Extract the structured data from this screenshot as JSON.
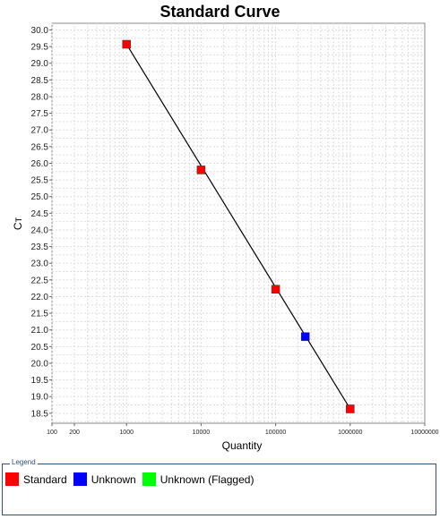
{
  "chart_data": {
    "type": "scatter",
    "title": "Standard Curve",
    "xlabel": "Quantity",
    "ylabel": "Cᴛ",
    "x_scale": "log",
    "xlim": [
      100,
      10000000
    ],
    "ylim": [
      18.2,
      30.2
    ],
    "x_ticks": [
      100,
      200,
      1000,
      10000,
      100000,
      1000000,
      10000000
    ],
    "x_tick_labels": [
      "100",
      "200",
      "1000",
      "10000",
      "100000",
      "1000000",
      "10000000"
    ],
    "y_ticks": [
      18.5,
      19.0,
      19.5,
      20.0,
      20.5,
      21.0,
      21.5,
      22.0,
      22.5,
      23.0,
      23.5,
      24.0,
      24.5,
      25.0,
      25.5,
      26.0,
      26.5,
      27.0,
      27.5,
      28.0,
      28.5,
      29.0,
      29.5,
      30.0
    ],
    "y_tick_labels": [
      "18.5",
      "19.0",
      "19.5",
      "20.0",
      "20.5",
      "21.0",
      "21.5",
      "22.0",
      "22.5",
      "23.0",
      "23.5",
      "24.0",
      "24.5",
      "25.0",
      "25.5",
      "26.0",
      "26.5",
      "27.0",
      "27.5",
      "28.0",
      "28.5",
      "29.0",
      "29.5",
      "30.0"
    ],
    "grid": true,
    "series": [
      {
        "name": "Standard",
        "color": "#ff0000",
        "marker": "square",
        "points": [
          {
            "x": 1000,
            "y": 29.57
          },
          {
            "x": 10000,
            "y": 25.8
          },
          {
            "x": 100000,
            "y": 22.22
          },
          {
            "x": 1000000,
            "y": 18.63
          }
        ]
      },
      {
        "name": "Unknown",
        "color": "#0000ff",
        "marker": "square",
        "points": [
          {
            "x": 250000,
            "y": 20.8
          }
        ]
      },
      {
        "name": "Unknown (Flagged)",
        "color": "#00ff00",
        "marker": "square",
        "points": []
      }
    ],
    "trendline": {
      "x": [
        1000,
        1000000
      ],
      "y": [
        29.57,
        18.63
      ],
      "color": "#000000"
    }
  },
  "legend": {
    "title": "Legend",
    "items": [
      {
        "label": "Standard",
        "color": "#ff0000"
      },
      {
        "label": "Unknown",
        "color": "#0000ff"
      },
      {
        "label": "Unknown (Flagged)",
        "color": "#00ff00"
      }
    ]
  }
}
